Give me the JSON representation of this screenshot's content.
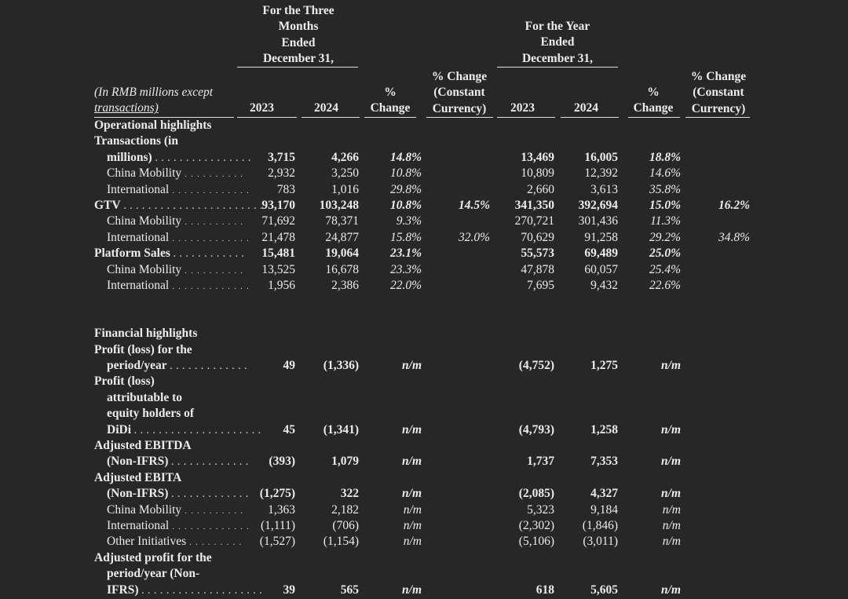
{
  "header": {
    "three_months": [
      "For the Three",
      "Months",
      "Ended",
      "December 31,"
    ],
    "year": [
      "For the Year",
      "Ended",
      "December 31,"
    ],
    "pct_change": [
      "%",
      "Change"
    ],
    "pct_change_const": [
      "% Change",
      "(Constant",
      "Currency)"
    ],
    "y2023": "2023",
    "y2024": "2024",
    "unit_note": [
      "(In RMB millions except",
      "transactions)"
    ]
  },
  "sections": {
    "operational": "Operational highlights",
    "financial": "Financial highlights"
  },
  "rows": [
    {
      "label": [
        "Transactions (in",
        "millions)"
      ],
      "bold": true,
      "indent": false,
      "dots": true,
      "q23": "3,715",
      "q24": "4,266",
      "qp": "14.8%",
      "qc": "",
      "y23": "13,469",
      "y24": "16,005",
      "yp": "18.8%",
      "yc": ""
    },
    {
      "label": [
        "China Mobility"
      ],
      "bold": false,
      "indent": true,
      "dots": true,
      "q23": "2,932",
      "q24": "3,250",
      "qp": "10.8%",
      "qc": "",
      "y23": "10,809",
      "y24": "12,392",
      "yp": "14.6%",
      "yc": ""
    },
    {
      "label": [
        "International"
      ],
      "bold": false,
      "indent": true,
      "dots": true,
      "q23": "783",
      "q24": "1,016",
      "qp": "29.8%",
      "qc": "",
      "y23": "2,660",
      "y24": "3,613",
      "yp": "35.8%",
      "yc": ""
    },
    {
      "label": [
        "GTV"
      ],
      "bold": true,
      "indent": false,
      "dots": true,
      "q23": "93,170",
      "q24": "103,248",
      "qp": "10.8%",
      "qc": "14.5%",
      "y23": "341,350",
      "y24": "392,694",
      "yp": "15.0%",
      "yc": "16.2%"
    },
    {
      "label": [
        "China Mobility"
      ],
      "bold": false,
      "indent": true,
      "dots": true,
      "q23": "71,692",
      "q24": "78,371",
      "qp": "9.3%",
      "qc": "",
      "y23": "270,721",
      "y24": "301,436",
      "yp": "11.3%",
      "yc": ""
    },
    {
      "label": [
        "International"
      ],
      "bold": false,
      "indent": true,
      "dots": true,
      "q23": "21,478",
      "q24": "24,877",
      "qp": "15.8%",
      "qc": "32.0%",
      "y23": "70,629",
      "y24": "91,258",
      "yp": "29.2%",
      "yc": "34.8%"
    },
    {
      "label": [
        "Platform Sales"
      ],
      "bold": true,
      "indent": false,
      "dots": true,
      "q23": "15,481",
      "q24": "19,064",
      "qp": "23.1%",
      "qc": "",
      "y23": "55,573",
      "y24": "69,489",
      "yp": "25.0%",
      "yc": ""
    },
    {
      "label": [
        "China Mobility"
      ],
      "bold": false,
      "indent": true,
      "dots": true,
      "q23": "13,525",
      "q24": "16,678",
      "qp": "23.3%",
      "qc": "",
      "y23": "47,878",
      "y24": "60,057",
      "yp": "25.4%",
      "yc": ""
    },
    {
      "label": [
        "International"
      ],
      "bold": false,
      "indent": true,
      "dots": true,
      "q23": "1,956",
      "q24": "2,386",
      "qp": "22.0%",
      "qc": "",
      "y23": "7,695",
      "y24": "9,432",
      "yp": "22.6%",
      "yc": ""
    },
    {
      "spacer": true
    },
    {
      "spacer": true
    },
    {
      "section": "financial"
    },
    {
      "label": [
        "Profit (loss) for the",
        "period/year"
      ],
      "bold": true,
      "indent": false,
      "dots": true,
      "q23": "49",
      "q24": "(1,336)",
      "qp": "n/m",
      "qc": "",
      "y23": "(4,752)",
      "y24": "1,275",
      "yp": "n/m",
      "yc": ""
    },
    {
      "label": [
        "Profit (loss)",
        "attributable to",
        "equity holders of",
        "DiDi"
      ],
      "bold": true,
      "indent": false,
      "dots": true,
      "q23": "45",
      "q24": "(1,341)",
      "qp": "n/m",
      "qc": "",
      "y23": "(4,793)",
      "y24": "1,258",
      "yp": "n/m",
      "yc": ""
    },
    {
      "label": [
        "Adjusted EBITDA",
        "(Non-IFRS)"
      ],
      "bold": true,
      "indent": false,
      "dots": true,
      "q23": "(393)",
      "q24": "1,079",
      "qp": "n/m",
      "qc": "",
      "y23": "1,737",
      "y24": "7,353",
      "yp": "n/m",
      "yc": ""
    },
    {
      "label": [
        "Adjusted EBITA",
        "(Non-IFRS)"
      ],
      "bold": true,
      "indent": false,
      "dots": true,
      "q23": "(1,275)",
      "q24": "322",
      "qp": "n/m",
      "qc": "",
      "y23": "(2,085)",
      "y24": "4,327",
      "yp": "n/m",
      "yc": ""
    },
    {
      "label": [
        "China Mobility"
      ],
      "bold": false,
      "indent": true,
      "dots": true,
      "q23": "1,363",
      "q24": "2,182",
      "qp": "n/m",
      "qc": "",
      "y23": "5,323",
      "y24": "9,184",
      "yp": "n/m",
      "yc": ""
    },
    {
      "label": [
        "International"
      ],
      "bold": false,
      "indent": true,
      "dots": true,
      "q23": "(1,111)",
      "q24": "(706)",
      "qp": "n/m",
      "qc": "",
      "y23": "(2,302)",
      "y24": "(1,846)",
      "yp": "n/m",
      "yc": ""
    },
    {
      "label": [
        "Other Initiatives"
      ],
      "bold": false,
      "indent": true,
      "dots": true,
      "q23": "(1,527)",
      "q24": "(1,154)",
      "qp": "n/m",
      "qc": "",
      "y23": "(5,106)",
      "y24": "(3,011)",
      "yp": "n/m",
      "yc": ""
    },
    {
      "label": [
        "Adjusted profit for the",
        "period/year (Non-",
        "IFRS)"
      ],
      "bold": true,
      "indent": false,
      "dots": true,
      "q23": "39",
      "q24": "565",
      "qp": "n/m",
      "qc": "",
      "y23": "618",
      "y24": "5,605",
      "yp": "n/m",
      "yc": ""
    }
  ]
}
